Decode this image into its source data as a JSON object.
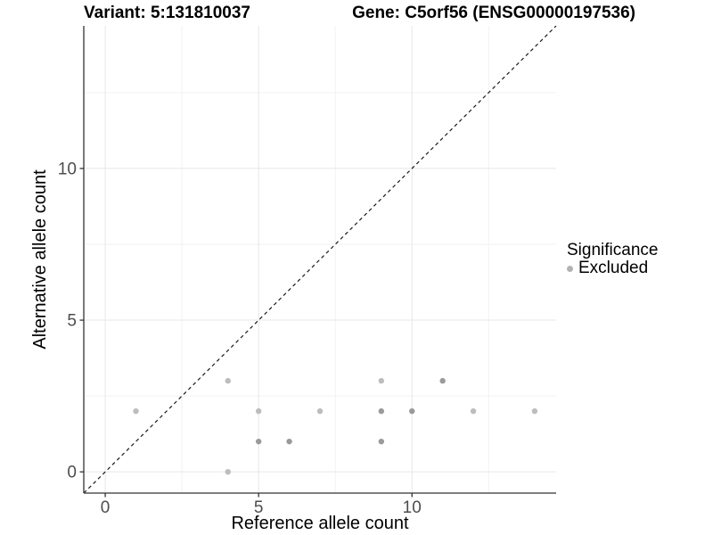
{
  "figure": {
    "title_left": "Variant: 5:131810037",
    "title_right": "Gene: C5orf56 (ENSG00000197536)"
  },
  "chart_data": {
    "type": "scatter",
    "title_left": "Variant: 5:131810037",
    "title_right": "Gene: C5orf56 (ENSG00000197536)",
    "xlabel": "Reference allele count",
    "ylabel": "Alternative allele count",
    "xlim": [
      -0.7,
      14.7
    ],
    "ylim": [
      -0.7,
      14.7
    ],
    "x_major_ticks": [
      0,
      5,
      10
    ],
    "y_major_ticks": [
      0,
      5,
      10
    ],
    "x_minor_ticks": [
      2.5,
      7.5,
      12.5
    ],
    "y_minor_ticks": [
      2.5,
      7.5,
      12.5
    ],
    "grid": "on",
    "identity_line": {
      "style": "dashed",
      "from": [
        -0.7,
        -0.7
      ],
      "to": [
        14.7,
        14.7
      ],
      "color": "#1a1a1a"
    },
    "series": [
      {
        "name": "Excluded",
        "points": [
          {
            "x": 1,
            "y": 2,
            "shade": "light"
          },
          {
            "x": 4,
            "y": 0,
            "shade": "light"
          },
          {
            "x": 4,
            "y": 3,
            "shade": "light"
          },
          {
            "x": 5,
            "y": 1,
            "shade": "dark"
          },
          {
            "x": 5,
            "y": 2,
            "shade": "light"
          },
          {
            "x": 6,
            "y": 1,
            "shade": "dark"
          },
          {
            "x": 7,
            "y": 2,
            "shade": "light"
          },
          {
            "x": 9,
            "y": 1,
            "shade": "dark"
          },
          {
            "x": 9,
            "y": 2,
            "shade": "dark"
          },
          {
            "x": 9,
            "y": 3,
            "shade": "light"
          },
          {
            "x": 10,
            "y": 2,
            "shade": "dark"
          },
          {
            "x": 11,
            "y": 3,
            "shade": "dark"
          },
          {
            "x": 12,
            "y": 2,
            "shade": "light"
          },
          {
            "x": 14,
            "y": 2,
            "shade": "light"
          }
        ]
      }
    ],
    "legend": {
      "title": "Significance",
      "position": "right",
      "items": [
        {
          "label": "Excluded",
          "color": "#b3b3b3"
        }
      ]
    },
    "colors": {
      "point_light": "#bdbdbd",
      "point_dark": "#9a9a9a",
      "grid_major": "#e7e7e7",
      "grid_minor": "#f2f2f2",
      "axis_line": "#333333",
      "tick_label": "#4d4d4d"
    }
  }
}
